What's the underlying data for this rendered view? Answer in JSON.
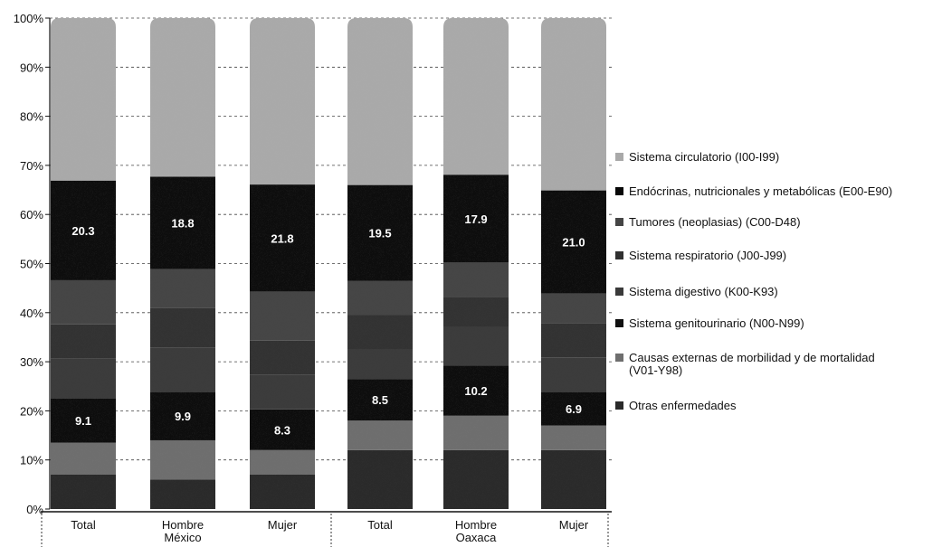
{
  "chart_data": {
    "type": "bar",
    "stacked": true,
    "y_ticks": [
      "0%",
      "10%",
      "20%",
      "30%",
      "40%",
      "50%",
      "60%",
      "70%",
      "80%",
      "90%",
      "100%"
    ],
    "ylim": [
      0,
      100
    ],
    "categories": [
      "Total",
      "Hombre",
      "Mujer",
      "Total",
      "Hombre",
      "Mujer"
    ],
    "groups": [
      {
        "label": "México",
        "categories": [
          "Total",
          "Hombre",
          "Mujer"
        ]
      },
      {
        "label": "Oaxaca",
        "categories": [
          "Total",
          "Hombre",
          "Mujer"
        ]
      }
    ],
    "series": [
      {
        "name": "Otras enfermedades",
        "values": [
          7,
          6,
          7,
          12,
          12,
          12
        ],
        "color": "#2a2a2a"
      },
      {
        "name": "Causas externas de morbilidad y de mortalidad (V01-Y98)",
        "values": [
          6.5,
          8,
          5,
          6,
          7,
          5
        ],
        "color": "#6e6e6e"
      },
      {
        "name": "Sistema genitourinario (N00-N99)",
        "values": [
          9.1,
          9.9,
          8.3,
          8.5,
          10.2,
          6.9
        ],
        "color": "#101010"
      },
      {
        "name": "Sistema digestivo (K00-K93)",
        "values": [
          8,
          9,
          7,
          6,
          8,
          7
        ],
        "color": "#3a3a3a"
      },
      {
        "name": "Sistema respiratorio (J00-J99)",
        "values": [
          7,
          8,
          7,
          7,
          6,
          7
        ],
        "color": "#303030"
      },
      {
        "name": "Tumores (neoplasias) (C00-D48)",
        "values": [
          9,
          8,
          10,
          7,
          7,
          6
        ],
        "color": "#454545"
      },
      {
        "name": "Endócrinas, nutricionales y metabólicas (E00-E90)",
        "values": [
          20.3,
          18.8,
          21.8,
          19.5,
          17.9,
          21.0
        ],
        "color": "#070707"
      },
      {
        "name": "Sistema circulatorio (I00-I99)",
        "values": [
          33.1,
          32.3,
          33.9,
          34.0,
          31.9,
          35.1
        ],
        "color": "#a9a9a9"
      }
    ],
    "data_labels": [
      {
        "bar": 0,
        "series": 6,
        "text": "20.3"
      },
      {
        "bar": 1,
        "series": 6,
        "text": "18.8"
      },
      {
        "bar": 2,
        "series": 6,
        "text": "21.8"
      },
      {
        "bar": 3,
        "series": 6,
        "text": "19.5"
      },
      {
        "bar": 4,
        "series": 6,
        "text": "17.9"
      },
      {
        "bar": 5,
        "series": 6,
        "text": "21.0"
      },
      {
        "bar": 0,
        "series": 2,
        "text": "9.1"
      },
      {
        "bar": 1,
        "series": 2,
        "text": "9.9"
      },
      {
        "bar": 2,
        "series": 2,
        "text": "8.3"
      },
      {
        "bar": 3,
        "series": 2,
        "text": "8.5"
      },
      {
        "bar": 4,
        "series": 2,
        "text": "10.2"
      },
      {
        "bar": 5,
        "series": 2,
        "text": "6.9"
      }
    ],
    "legend_order": [
      7,
      6,
      5,
      4,
      3,
      2,
      1,
      0
    ],
    "legend_position": "right",
    "grid": true,
    "grid_style": "dashed",
    "label_color": "#ffffff"
  }
}
